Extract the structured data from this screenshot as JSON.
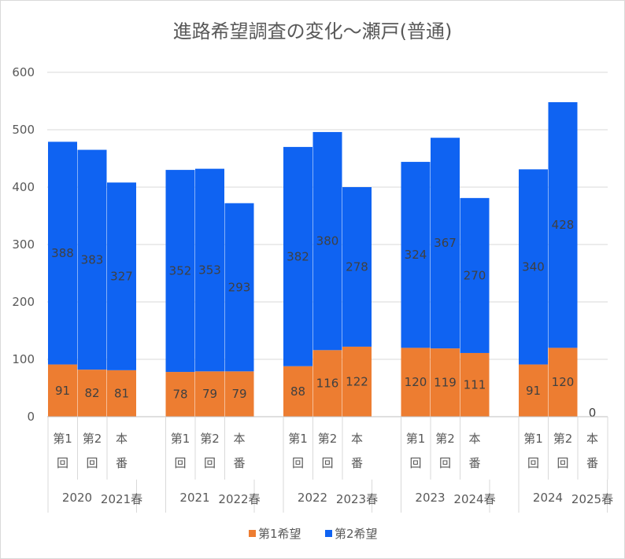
{
  "chart_data": {
    "type": "bar",
    "stacked": true,
    "title": "進路希望調査の変化～瀬戸(普通)",
    "ylim": [
      0,
      600
    ],
    "yticks": [
      0,
      100,
      200,
      300,
      400,
      500,
      600
    ],
    "grid": true,
    "legend_position": "bottom",
    "categories": [
      {
        "line1": "第1",
        "line2": "回"
      },
      {
        "line1": "第2",
        "line2": "回"
      },
      {
        "line1": "本",
        "line2": "番"
      },
      {
        "line1": "第1",
        "line2": "回"
      },
      {
        "line1": "第2",
        "line2": "回"
      },
      {
        "line1": "本",
        "line2": "番"
      },
      {
        "line1": "第1",
        "line2": "回"
      },
      {
        "line1": "第2",
        "line2": "回"
      },
      {
        "line1": "本",
        "line2": "番"
      },
      {
        "line1": "第1",
        "line2": "回"
      },
      {
        "line1": "第2",
        "line2": "回"
      },
      {
        "line1": "本",
        "line2": "番"
      },
      {
        "line1": "第1",
        "line2": "回"
      },
      {
        "line1": "第2",
        "line2": "回"
      },
      {
        "line1": "本",
        "line2": "番"
      }
    ],
    "groups": [
      {
        "year": "2020",
        "spring": "2021春"
      },
      {
        "year": "2021",
        "spring": "2022春"
      },
      {
        "year": "2022",
        "spring": "2023春"
      },
      {
        "year": "2023",
        "spring": "2024春"
      },
      {
        "year": "2024",
        "spring": "2025春"
      }
    ],
    "series": [
      {
        "name": "第1希望",
        "color": "#ED7D31",
        "values": [
          91,
          82,
          81,
          78,
          79,
          79,
          88,
          116,
          122,
          120,
          119,
          111,
          91,
          120,
          0
        ]
      },
      {
        "name": "第2希望",
        "color": "#0F63F2",
        "values": [
          388,
          383,
          327,
          352,
          353,
          293,
          382,
          380,
          278,
          324,
          367,
          270,
          340,
          428,
          null
        ]
      }
    ]
  }
}
